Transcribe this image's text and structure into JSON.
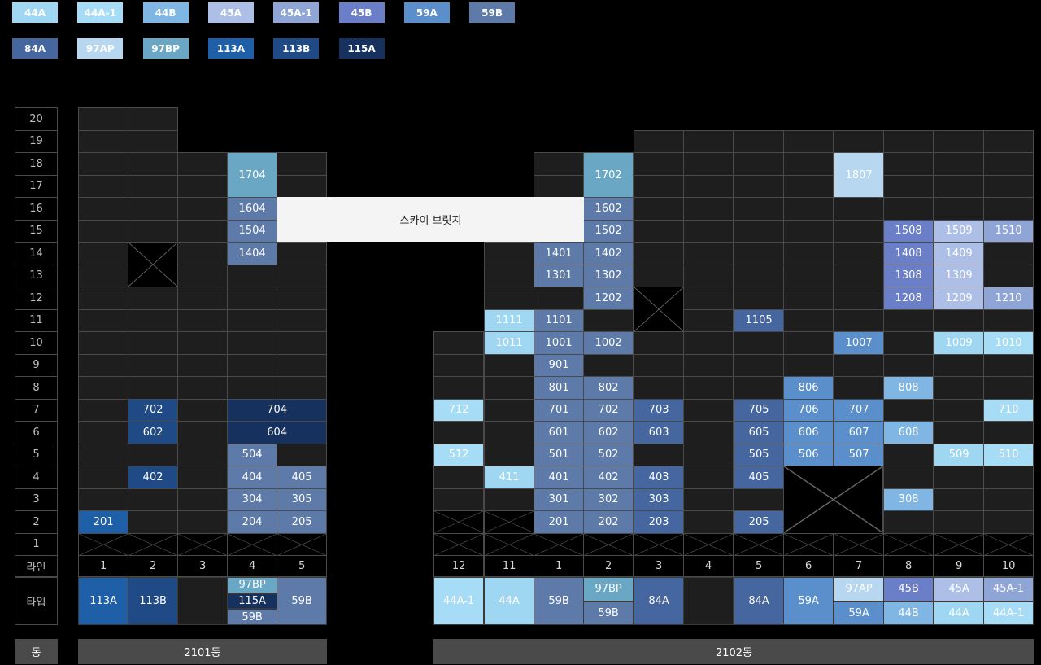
{
  "legend": [
    {
      "label": "44A",
      "color": "#9fd6f2",
      "text": "#ffffff"
    },
    {
      "label": "44A-1",
      "color": "#a7dcf7",
      "text": "#ffffff"
    },
    {
      "label": "44B",
      "color": "#7fb6e3",
      "text": "#ffffff"
    },
    {
      "label": "45A",
      "color": "#adbfe6",
      "text": "#ffffff"
    },
    {
      "label": "45A-1",
      "color": "#8fa5d6",
      "text": "#ffffff"
    },
    {
      "label": "45B",
      "color": "#6b7fc9",
      "text": "#ffffff"
    },
    {
      "label": "59A",
      "color": "#5a8fcc",
      "text": "#ffffff"
    },
    {
      "label": "59B",
      "color": "#5e7aa8",
      "text": "#ffffff"
    },
    {
      "label": "84A",
      "color": "#45669e",
      "text": "#ffffff"
    },
    {
      "label": "97AP",
      "color": "#b7d7f1",
      "text": "#ffffff"
    },
    {
      "label": "97BP",
      "color": "#6aa7c4",
      "text": "#ffffff"
    },
    {
      "label": "113A",
      "color": "#1f5fa8",
      "text": "#ffffff"
    },
    {
      "label": "113B",
      "color": "#1f4a85",
      "text": "#ffffff"
    },
    {
      "label": "115A",
      "color": "#17315e",
      "text": "#ffffff"
    }
  ],
  "floors": [
    "20",
    "19",
    "18",
    "17",
    "16",
    "15",
    "14",
    "13",
    "12",
    "11",
    "10",
    "9",
    "8",
    "7",
    "6",
    "5",
    "4",
    "3",
    "2",
    "1"
  ],
  "labels": {
    "line": "라인",
    "type": "타입",
    "building": "동",
    "skybridge": "스카이 브릿지"
  },
  "buildings": [
    {
      "name": "2101동",
      "lines": [
        "1",
        "2",
        "3",
        "4",
        "5"
      ],
      "types": [
        [
          {
            "t": "113A",
            "c": "113A"
          }
        ],
        [
          {
            "t": "113B",
            "c": "113B"
          }
        ],
        [],
        [
          {
            "t": "97BP",
            "c": "97BP"
          },
          {
            "t": "115A",
            "c": "115A"
          },
          {
            "t": "59B",
            "c": "59B"
          }
        ],
        [
          {
            "t": "59B",
            "c": "59B"
          }
        ]
      ]
    },
    {
      "name": "2102동",
      "lines": [
        "12",
        "11",
        "1",
        "2",
        "3",
        "4",
        "5",
        "6",
        "7",
        "8",
        "9",
        "10"
      ],
      "types": [
        [
          {
            "t": "44A-1",
            "c": "44A-1"
          }
        ],
        [
          {
            "t": "44A",
            "c": "44A"
          }
        ],
        [
          {
            "t": "59B",
            "c": "59B"
          }
        ],
        [
          {
            "t": "97BP",
            "c": "97BP"
          },
          {
            "t": "59B",
            "c": "59B"
          }
        ],
        [
          {
            "t": "84A",
            "c": "84A"
          }
        ],
        [],
        [
          {
            "t": "84A",
            "c": "84A"
          }
        ],
        [
          {
            "t": "59A",
            "c": "59A"
          }
        ],
        [
          {
            "t": "97AP",
            "c": "97AP"
          },
          {
            "t": "59A",
            "c": "59A"
          }
        ],
        [
          {
            "t": "45B",
            "c": "45B"
          },
          {
            "t": "44B",
            "c": "44B"
          }
        ],
        [
          {
            "t": "45A",
            "c": "45A"
          },
          {
            "t": "44A",
            "c": "44A"
          }
        ],
        [
          {
            "t": "45A-1",
            "c": "45A-1"
          },
          {
            "t": "44A-1",
            "c": "44A-1"
          }
        ]
      ]
    }
  ],
  "units": {
    "b1": {
      "1": {
        "2": {
          "n": "201",
          "c": "113A"
        }
      },
      "2": {
        "7": {
          "n": "702",
          "c": "113B"
        },
        "6": {
          "n": "602",
          "c": "113B"
        },
        "4": {
          "n": "402",
          "c": "113B"
        }
      },
      "4": {
        "18": {
          "n": "1704",
          "c": "97BP"
        },
        "16": {
          "n": "1604",
          "c": "59B"
        },
        "15": {
          "n": "1504",
          "c": "59B"
        },
        "14": {
          "n": "1404",
          "c": "59B"
        },
        "5": {
          "n": "504",
          "c": "59B"
        },
        "4": {
          "n": "404",
          "c": "59B"
        },
        "3": {
          "n": "304",
          "c": "59B"
        },
        "2": {
          "n": "204",
          "c": "59B"
        }
      },
      "4-5": {
        "7": {
          "n": "704",
          "c": "115A"
        },
        "6": {
          "n": "604",
          "c": "115A"
        }
      },
      "5": {
        "4": {
          "n": "405",
          "c": "59B"
        },
        "3": {
          "n": "305",
          "c": "59B"
        },
        "2": {
          "n": "205",
          "c": "59B"
        }
      }
    },
    "b2": {
      "12": {
        "7": {
          "n": "712",
          "c": "44A-1"
        },
        "5": {
          "n": "512",
          "c": "44A-1"
        }
      },
      "11": {
        "11": {
          "n": "1111",
          "c": "44A"
        },
        "10": {
          "n": "1011",
          "c": "44A"
        },
        "4": {
          "n": "411",
          "c": "44A"
        }
      },
      "1": {
        "14": {
          "n": "1401",
          "c": "59B"
        },
        "13": {
          "n": "1301",
          "c": "59B"
        },
        "11": {
          "n": "1101",
          "c": "59B"
        },
        "10": {
          "n": "1001",
          "c": "59B"
        },
        "9": {
          "n": "901",
          "c": "59B"
        },
        "8": {
          "n": "801",
          "c": "59B"
        },
        "7": {
          "n": "701",
          "c": "59B"
        },
        "6": {
          "n": "601",
          "c": "59B"
        },
        "5": {
          "n": "501",
          "c": "59B"
        },
        "4": {
          "n": "401",
          "c": "59B"
        },
        "3": {
          "n": "301",
          "c": "59B"
        },
        "2": {
          "n": "201",
          "c": "59B"
        }
      },
      "2": {
        "18": {
          "n": "1702",
          "c": "97BP"
        },
        "16": {
          "n": "1602",
          "c": "59B"
        },
        "15": {
          "n": "1502",
          "c": "59B"
        },
        "14": {
          "n": "1402",
          "c": "59B"
        },
        "13": {
          "n": "1302",
          "c": "59B"
        },
        "12": {
          "n": "1202",
          "c": "59B"
        },
        "10": {
          "n": "1002",
          "c": "59B"
        },
        "8": {
          "n": "802",
          "c": "59B"
        },
        "7": {
          "n": "702",
          "c": "59B"
        },
        "6": {
          "n": "602",
          "c": "59B"
        },
        "5": {
          "n": "502",
          "c": "59B"
        },
        "4": {
          "n": "402",
          "c": "59B"
        },
        "3": {
          "n": "302",
          "c": "59B"
        },
        "2": {
          "n": "202",
          "c": "59B"
        }
      },
      "3": {
        "7": {
          "n": "703",
          "c": "84A"
        },
        "6": {
          "n": "603",
          "c": "84A"
        },
        "4": {
          "n": "403",
          "c": "84A"
        },
        "3": {
          "n": "303",
          "c": "84A"
        },
        "2": {
          "n": "203",
          "c": "84A"
        }
      },
      "5": {
        "11": {
          "n": "1105",
          "c": "84A"
        },
        "7": {
          "n": "705",
          "c": "84A"
        },
        "6": {
          "n": "605",
          "c": "84A"
        },
        "5": {
          "n": "505",
          "c": "84A"
        },
        "4": {
          "n": "405",
          "c": "84A"
        },
        "2": {
          "n": "205",
          "c": "84A"
        }
      },
      "6": {
        "8": {
          "n": "806",
          "c": "59A"
        },
        "7": {
          "n": "706",
          "c": "59A"
        },
        "6": {
          "n": "606",
          "c": "59A"
        },
        "5": {
          "n": "506",
          "c": "59A"
        }
      },
      "7": {
        "18": {
          "n": "1807",
          "c": "97AP"
        },
        "10": {
          "n": "1007",
          "c": "59A"
        },
        "7": {
          "n": "707",
          "c": "59A"
        },
        "6": {
          "n": "607",
          "c": "59A"
        },
        "5": {
          "n": "507",
          "c": "59A"
        }
      },
      "8": {
        "15": {
          "n": "1508",
          "c": "45B"
        },
        "14": {
          "n": "1408",
          "c": "45B"
        },
        "13": {
          "n": "1308",
          "c": "45B"
        },
        "12": {
          "n": "1208",
          "c": "45B"
        },
        "8": {
          "n": "808",
          "c": "44B"
        },
        "6": {
          "n": "608",
          "c": "44B"
        },
        "3": {
          "n": "308",
          "c": "44B"
        }
      },
      "9": {
        "15": {
          "n": "1509",
          "c": "45A"
        },
        "14": {
          "n": "1409",
          "c": "45A"
        },
        "13": {
          "n": "1309",
          "c": "45A"
        },
        "12": {
          "n": "1209",
          "c": "45A"
        },
        "10": {
          "n": "1009",
          "c": "44A"
        },
        "5": {
          "n": "509",
          "c": "44A"
        }
      },
      "10": {
        "15": {
          "n": "1510",
          "c": "45A-1"
        },
        "12": {
          "n": "1210",
          "c": "45A-1"
        },
        "10": {
          "n": "1010",
          "c": "44A-1"
        },
        "7": {
          "n": "710",
          "c": "44A-1"
        },
        "5": {
          "n": "510",
          "c": "44A-1"
        }
      }
    }
  }
}
